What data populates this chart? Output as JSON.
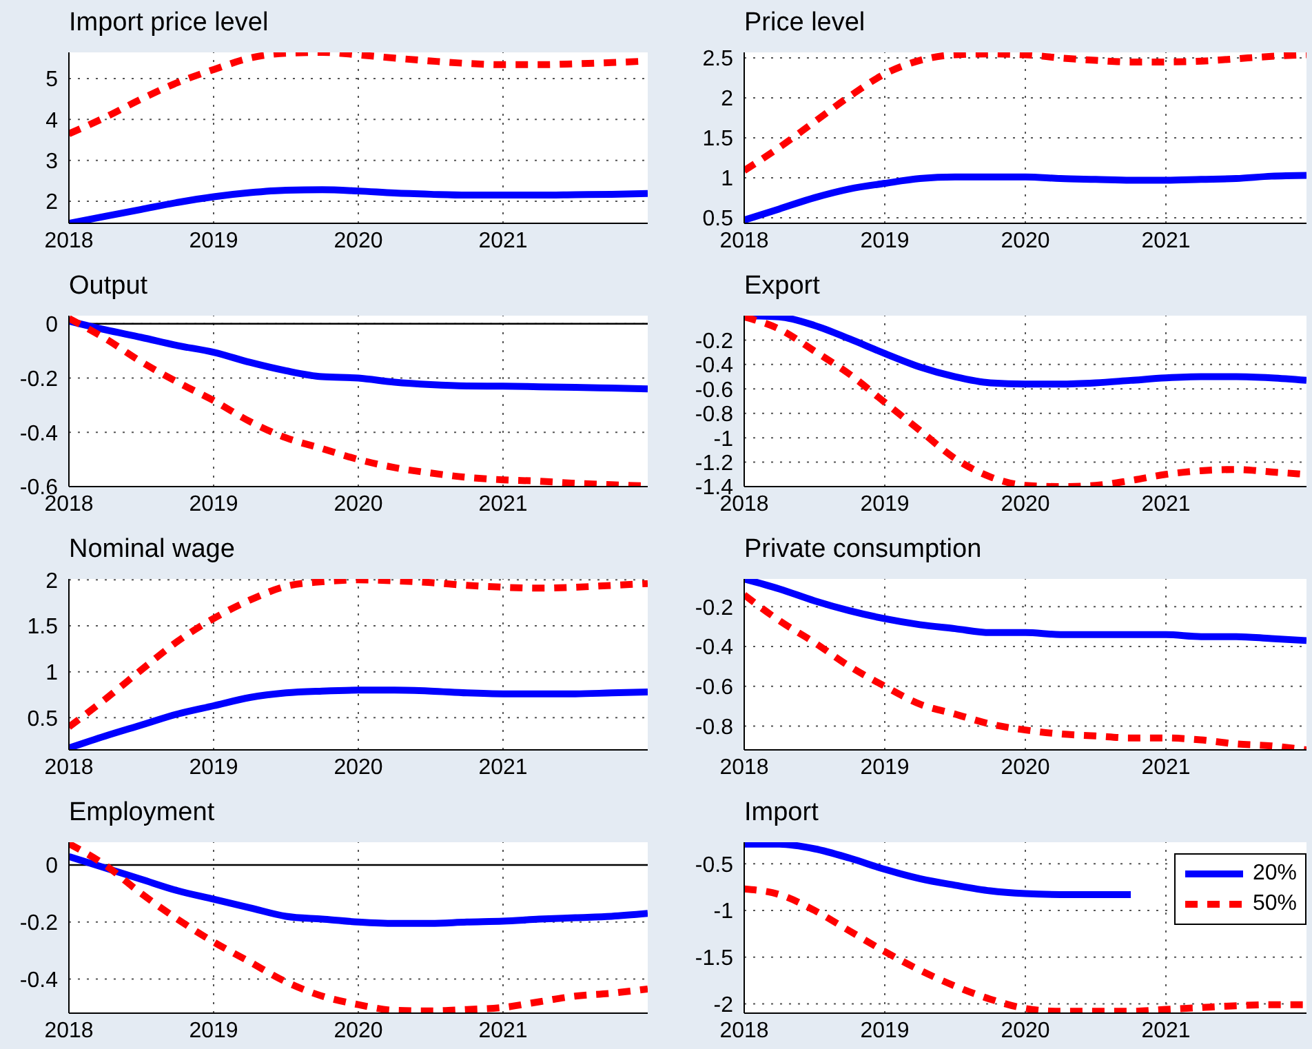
{
  "chart_data": [
    {
      "type": "line",
      "title": "Import price level",
      "x": [
        2018,
        2018.25,
        2018.5,
        2018.75,
        2019,
        2019.25,
        2019.5,
        2019.75,
        2020,
        2020.25,
        2020.5,
        2020.75,
        2021,
        2021.25,
        2021.5,
        2021.75,
        2022
      ],
      "xlim": [
        2018,
        2022
      ],
      "xticks": [
        2018,
        2019,
        2020,
        2021
      ],
      "ylim": [
        1.46,
        5.64
      ],
      "yticks": [
        2,
        3,
        4,
        5
      ],
      "grid": true,
      "legend": false,
      "series": [
        {
          "color": "#0000ff",
          "line_style": "solid",
          "values": [
            1.46,
            1.63,
            1.8,
            1.97,
            2.11,
            2.21,
            2.27,
            2.28,
            2.25,
            2.2,
            2.17,
            2.15,
            2.15,
            2.15,
            2.16,
            2.17,
            2.19
          ]
        },
        {
          "color": "#ff0000",
          "line_style": "dashed",
          "values": [
            3.65,
            4.05,
            4.5,
            4.9,
            5.22,
            5.5,
            5.62,
            5.64,
            5.58,
            5.5,
            5.43,
            5.37,
            5.34,
            5.34,
            5.36,
            5.39,
            5.43
          ]
        }
      ]
    },
    {
      "type": "line",
      "title": "Price level",
      "x": [
        2018,
        2018.25,
        2018.5,
        2018.75,
        2019,
        2019.25,
        2019.5,
        2019.75,
        2020,
        2020.25,
        2020.5,
        2020.75,
        2021,
        2021.25,
        2021.5,
        2021.75,
        2022
      ],
      "xlim": [
        2018,
        2022
      ],
      "xticks": [
        2018,
        2019,
        2020,
        2021
      ],
      "ylim": [
        0.43,
        2.57
      ],
      "yticks": [
        0.5,
        1,
        1.5,
        2,
        2.5
      ],
      "grid": true,
      "legend": false,
      "series": [
        {
          "color": "#0000ff",
          "line_style": "solid",
          "values": [
            0.47,
            0.61,
            0.75,
            0.86,
            0.93,
            0.99,
            1.01,
            1.01,
            1.01,
            0.99,
            0.98,
            0.97,
            0.97,
            0.98,
            0.99,
            1.02,
            1.03
          ]
        },
        {
          "color": "#ff0000",
          "line_style": "dashed",
          "values": [
            1.09,
            1.38,
            1.7,
            2.02,
            2.3,
            2.47,
            2.54,
            2.55,
            2.54,
            2.5,
            2.47,
            2.45,
            2.45,
            2.46,
            2.49,
            2.52,
            2.54
          ]
        }
      ]
    },
    {
      "type": "line",
      "title": "Output",
      "x": [
        2018,
        2018.25,
        2018.5,
        2018.75,
        2019,
        2019.25,
        2019.5,
        2019.75,
        2020,
        2020.25,
        2020.5,
        2020.75,
        2021,
        2021.25,
        2021.5,
        2021.75,
        2022
      ],
      "xlim": [
        2018,
        2022
      ],
      "xticks": [
        2018,
        2019,
        2020,
        2021
      ],
      "ylim": [
        -0.6,
        0.03
      ],
      "yticks": [
        -0.6,
        -0.4,
        -0.2,
        0
      ],
      "grid": true,
      "legend": false,
      "ref_lines": [
        {
          "axis": "y",
          "value": 0,
          "color": "#000000"
        }
      ],
      "series": [
        {
          "color": "#0000ff",
          "line_style": "solid",
          "values": [
            0.01,
            -0.022,
            -0.05,
            -0.08,
            -0.105,
            -0.142,
            -0.173,
            -0.195,
            -0.2,
            -0.215,
            -0.224,
            -0.229,
            -0.23,
            -0.232,
            -0.234,
            -0.237,
            -0.24
          ]
        },
        {
          "color": "#ff0000",
          "line_style": "dashed",
          "values": [
            0.02,
            -0.054,
            -0.14,
            -0.215,
            -0.283,
            -0.36,
            -0.42,
            -0.46,
            -0.5,
            -0.53,
            -0.55,
            -0.566,
            -0.575,
            -0.58,
            -0.588,
            -0.593,
            -0.598
          ]
        }
      ]
    },
    {
      "type": "line",
      "title": "Export",
      "x": [
        2018,
        2018.25,
        2018.5,
        2018.75,
        2019,
        2019.25,
        2019.5,
        2019.75,
        2020,
        2020.25,
        2020.5,
        2020.75,
        2021,
        2021.25,
        2021.5,
        2021.75,
        2022
      ],
      "xlim": [
        2018,
        2022
      ],
      "xticks": [
        2018,
        2019,
        2020,
        2021
      ],
      "ylim": [
        -1.4,
        0
      ],
      "yticks": [
        -1.4,
        -1.2,
        -1,
        -0.8,
        -0.6,
        -0.4,
        -0.2
      ],
      "grid": true,
      "legend": false,
      "series": [
        {
          "color": "#0000ff",
          "line_style": "solid",
          "values": [
            0,
            -0.01,
            -0.08,
            -0.19,
            -0.31,
            -0.42,
            -0.5,
            -0.55,
            -0.56,
            -0.56,
            -0.55,
            -0.53,
            -0.51,
            -0.5,
            -0.5,
            -0.51,
            -0.53
          ]
        },
        {
          "color": "#ff0000",
          "line_style": "dashed",
          "values": [
            -0.01,
            -0.11,
            -0.29,
            -0.48,
            -0.71,
            -0.94,
            -1.17,
            -1.32,
            -1.39,
            -1.4,
            -1.39,
            -1.35,
            -1.3,
            -1.27,
            -1.26,
            -1.28,
            -1.3
          ]
        }
      ]
    },
    {
      "type": "line",
      "title": "Nominal wage",
      "x": [
        2018,
        2018.25,
        2018.5,
        2018.75,
        2019,
        2019.25,
        2019.5,
        2019.75,
        2020,
        2020.25,
        2020.5,
        2020.75,
        2021,
        2021.25,
        2021.5,
        2021.75,
        2022
      ],
      "xlim": [
        2018,
        2022
      ],
      "xticks": [
        2018,
        2019,
        2020,
        2021
      ],
      "ylim": [
        0.15,
        2.01
      ],
      "yticks": [
        0.5,
        1,
        1.5,
        2
      ],
      "grid": true,
      "legend": false,
      "series": [
        {
          "color": "#0000ff",
          "line_style": "solid",
          "values": [
            0.17,
            0.3,
            0.42,
            0.54,
            0.63,
            0.72,
            0.77,
            0.79,
            0.8,
            0.8,
            0.79,
            0.77,
            0.76,
            0.76,
            0.76,
            0.77,
            0.78
          ]
        },
        {
          "color": "#ff0000",
          "line_style": "dashed",
          "values": [
            0.4,
            0.7,
            1.02,
            1.33,
            1.58,
            1.78,
            1.93,
            1.98,
            2,
            1.99,
            1.97,
            1.94,
            1.92,
            1.91,
            1.92,
            1.94,
            1.96
          ]
        }
      ]
    },
    {
      "type": "line",
      "title": "Private consumption",
      "x": [
        2018,
        2018.25,
        2018.5,
        2018.75,
        2019,
        2019.25,
        2019.5,
        2019.75,
        2020,
        2020.25,
        2020.5,
        2020.75,
        2021,
        2021.25,
        2021.5,
        2021.75,
        2022
      ],
      "xlim": [
        2018,
        2022
      ],
      "xticks": [
        2018,
        2019,
        2020,
        2021
      ],
      "ylim": [
        -0.92,
        -0.06
      ],
      "yticks": [
        -0.8,
        -0.6,
        -0.4,
        -0.2
      ],
      "grid": true,
      "legend": false,
      "series": [
        {
          "color": "#0000ff",
          "line_style": "solid",
          "values": [
            -0.06,
            -0.11,
            -0.17,
            -0.22,
            -0.26,
            -0.29,
            -0.31,
            -0.33,
            -0.33,
            -0.34,
            -0.34,
            -0.34,
            -0.34,
            -0.35,
            -0.35,
            -0.36,
            -0.37
          ]
        },
        {
          "color": "#ff0000",
          "line_style": "dashed",
          "values": [
            -0.14,
            -0.27,
            -0.38,
            -0.5,
            -0.6,
            -0.69,
            -0.74,
            -0.79,
            -0.82,
            -0.84,
            -0.85,
            -0.86,
            -0.86,
            -0.87,
            -0.89,
            -0.9,
            -0.92
          ]
        }
      ]
    },
    {
      "type": "line",
      "title": "Employment",
      "x": [
        2018,
        2018.25,
        2018.5,
        2018.75,
        2019,
        2019.25,
        2019.5,
        2019.75,
        2020,
        2020.25,
        2020.5,
        2020.75,
        2021,
        2021.25,
        2021.5,
        2021.75,
        2022
      ],
      "xlim": [
        2018,
        2022
      ],
      "xticks": [
        2018,
        2019,
        2020,
        2021
      ],
      "ylim": [
        -0.52,
        0.08
      ],
      "yticks": [
        -0.4,
        -0.2,
        0
      ],
      "grid": true,
      "legend": false,
      "ref_lines": [
        {
          "axis": "y",
          "value": 0,
          "color": "#000000"
        }
      ],
      "series": [
        {
          "color": "#0000ff",
          "line_style": "solid",
          "values": [
            0.03,
            -0.01,
            -0.05,
            -0.09,
            -0.12,
            -0.15,
            -0.18,
            -0.19,
            -0.2,
            -0.205,
            -0.205,
            -0.2,
            -0.197,
            -0.19,
            -0.185,
            -0.18,
            -0.17
          ]
        },
        {
          "color": "#ff0000",
          "line_style": "dashed",
          "values": [
            0.075,
            0,
            -0.1,
            -0.19,
            -0.27,
            -0.34,
            -0.41,
            -0.46,
            -0.49,
            -0.51,
            -0.512,
            -0.507,
            -0.5,
            -0.48,
            -0.46,
            -0.45,
            -0.435
          ]
        }
      ]
    },
    {
      "type": "line",
      "title": "Import",
      "x": [
        2018,
        2018.25,
        2018.5,
        2018.75,
        2019,
        2019.25,
        2019.5,
        2019.75,
        2020,
        2020.25,
        2020.5,
        2020.75,
        2021,
        2021.25,
        2021.5,
        2021.75,
        2022
      ],
      "xlim": [
        2018,
        2022
      ],
      "xticks": [
        2018,
        2019,
        2020,
        2021
      ],
      "ylim": [
        -2.1,
        -0.27
      ],
      "yticks": [
        -2,
        -1.5,
        -1,
        -0.5
      ],
      "grid": true,
      "legend": "top right",
      "series": [
        {
          "name": "20%",
          "color": "#0000ff",
          "line_style": "solid",
          "values": [
            -0.29,
            -0.29,
            -0.34,
            -0.44,
            -0.56,
            -0.66,
            -0.73,
            -0.79,
            -0.82,
            -0.83,
            -0.83,
            -0.83,
            null,
            null,
            null,
            null,
            null
          ]
        },
        {
          "name": "50%",
          "color": "#ff0000",
          "line_style": "dashed",
          "values": [
            -0.77,
            -0.83,
            -1,
            -1.22,
            -1.44,
            -1.64,
            -1.81,
            -1.95,
            -2.05,
            -2.08,
            -2.08,
            -2.08,
            -2.06,
            -2.04,
            -2.02,
            -2.01,
            -2.01
          ]
        }
      ]
    }
  ]
}
